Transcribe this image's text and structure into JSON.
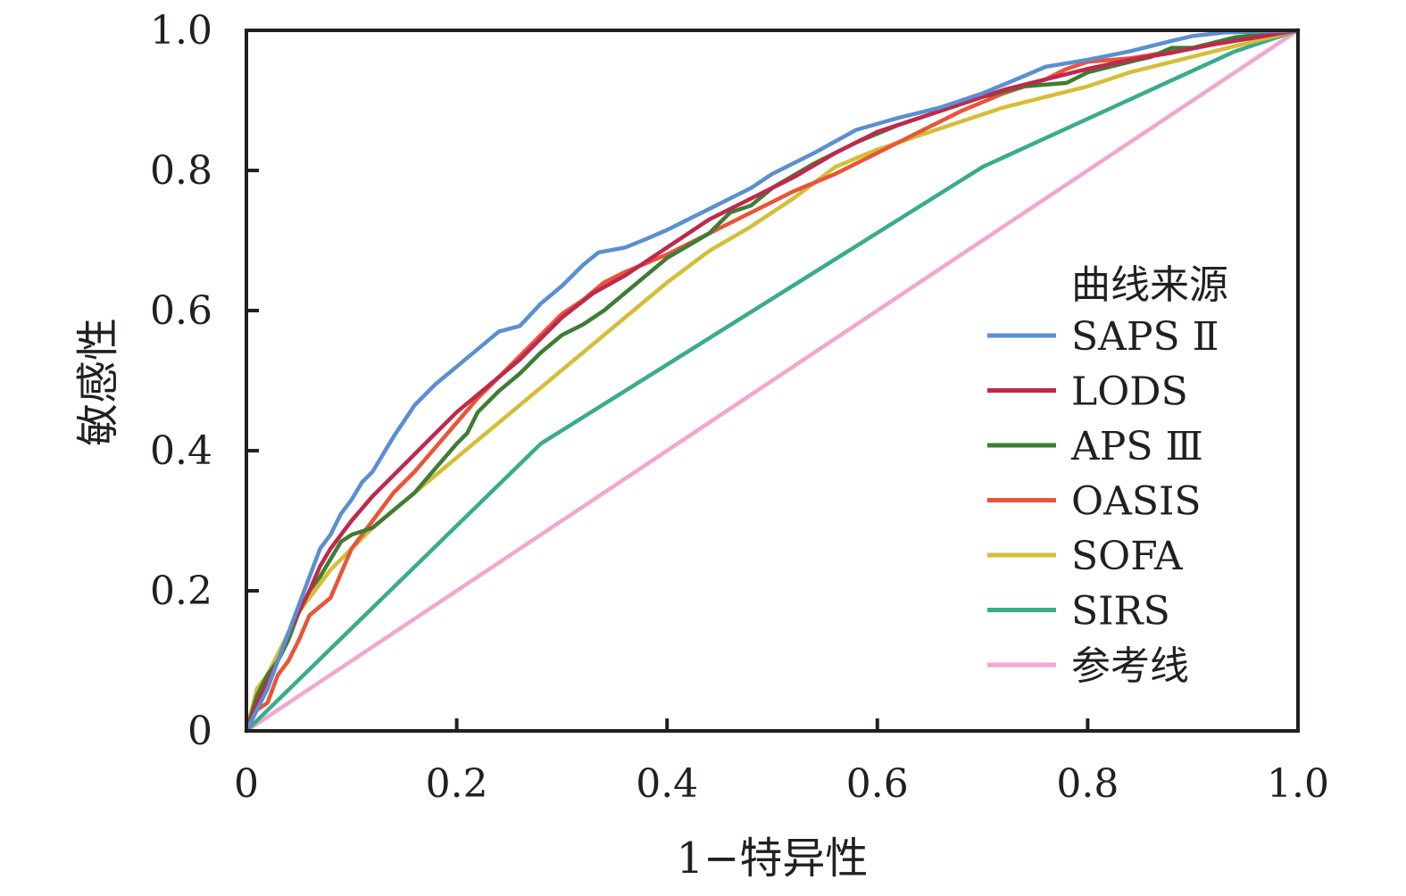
{
  "chart_data": {
    "type": "line",
    "xlabel": "1−特异性",
    "ylabel": "敏感性",
    "xlim": [
      0,
      1
    ],
    "ylim": [
      0,
      1
    ],
    "x_ticks": [
      0,
      0.2,
      0.4,
      0.6,
      0.8,
      1.0
    ],
    "y_ticks": [
      0,
      0.2,
      0.4,
      0.6,
      0.8,
      1.0
    ],
    "x_tick_labels": [
      "0",
      "0.2",
      "0.4",
      "0.6",
      "0.8",
      "1.0"
    ],
    "y_tick_labels": [
      "0",
      "0.2",
      "0.4",
      "0.6",
      "0.8",
      "1.0"
    ],
    "grid": false,
    "legend_title": "曲线来源",
    "legend_position": "right",
    "series": [
      {
        "name": "SAPS Ⅱ",
        "color": "#5b8fd1",
        "points": [
          [
            0,
            0
          ],
          [
            0.01,
            0.03
          ],
          [
            0.02,
            0.06
          ],
          [
            0.03,
            0.1
          ],
          [
            0.04,
            0.14
          ],
          [
            0.05,
            0.18
          ],
          [
            0.06,
            0.22
          ],
          [
            0.07,
            0.26
          ],
          [
            0.08,
            0.28
          ],
          [
            0.09,
            0.31
          ],
          [
            0.1,
            0.33
          ],
          [
            0.11,
            0.355
          ],
          [
            0.12,
            0.37
          ],
          [
            0.14,
            0.42
          ],
          [
            0.16,
            0.465
          ],
          [
            0.18,
            0.495
          ],
          [
            0.2,
            0.52
          ],
          [
            0.22,
            0.545
          ],
          [
            0.24,
            0.57
          ],
          [
            0.26,
            0.578
          ],
          [
            0.28,
            0.61
          ],
          [
            0.3,
            0.635
          ],
          [
            0.32,
            0.665
          ],
          [
            0.335,
            0.683
          ],
          [
            0.36,
            0.69
          ],
          [
            0.38,
            0.702
          ],
          [
            0.4,
            0.715
          ],
          [
            0.44,
            0.745
          ],
          [
            0.48,
            0.775
          ],
          [
            0.5,
            0.795
          ],
          [
            0.54,
            0.825
          ],
          [
            0.58,
            0.858
          ],
          [
            0.62,
            0.875
          ],
          [
            0.66,
            0.89
          ],
          [
            0.7,
            0.91
          ],
          [
            0.74,
            0.935
          ],
          [
            0.76,
            0.948
          ],
          [
            0.8,
            0.958
          ],
          [
            0.84,
            0.97
          ],
          [
            0.88,
            0.985
          ],
          [
            0.9,
            0.992
          ],
          [
            0.93,
            0.997
          ],
          [
            0.96,
            0.998
          ],
          [
            1,
            1
          ]
        ]
      },
      {
        "name": "LODS",
        "color": "#c0284d",
        "points": [
          [
            0,
            0
          ],
          [
            0.01,
            0.04
          ],
          [
            0.02,
            0.07
          ],
          [
            0.03,
            0.1
          ],
          [
            0.04,
            0.14
          ],
          [
            0.05,
            0.17
          ],
          [
            0.06,
            0.2
          ],
          [
            0.07,
            0.235
          ],
          [
            0.08,
            0.26
          ],
          [
            0.1,
            0.3
          ],
          [
            0.12,
            0.335
          ],
          [
            0.14,
            0.365
          ],
          [
            0.16,
            0.395
          ],
          [
            0.18,
            0.425
          ],
          [
            0.2,
            0.455
          ],
          [
            0.22,
            0.48
          ],
          [
            0.24,
            0.505
          ],
          [
            0.26,
            0.53
          ],
          [
            0.28,
            0.56
          ],
          [
            0.3,
            0.59
          ],
          [
            0.33,
            0.625
          ],
          [
            0.36,
            0.65
          ],
          [
            0.4,
            0.69
          ],
          [
            0.44,
            0.73
          ],
          [
            0.48,
            0.76
          ],
          [
            0.52,
            0.79
          ],
          [
            0.56,
            0.825
          ],
          [
            0.6,
            0.855
          ],
          [
            0.64,
            0.875
          ],
          [
            0.68,
            0.895
          ],
          [
            0.72,
            0.915
          ],
          [
            0.76,
            0.93
          ],
          [
            0.8,
            0.945
          ],
          [
            0.84,
            0.958
          ],
          [
            0.88,
            0.968
          ],
          [
            0.92,
            0.98
          ],
          [
            0.96,
            0.99
          ],
          [
            1,
            1
          ]
        ]
      },
      {
        "name": "APS Ⅲ",
        "color": "#3e7d34",
        "points": [
          [
            0,
            0
          ],
          [
            0.01,
            0.05
          ],
          [
            0.02,
            0.08
          ],
          [
            0.03,
            0.1
          ],
          [
            0.04,
            0.13
          ],
          [
            0.05,
            0.17
          ],
          [
            0.06,
            0.2
          ],
          [
            0.07,
            0.22
          ],
          [
            0.08,
            0.245
          ],
          [
            0.09,
            0.27
          ],
          [
            0.1,
            0.28
          ],
          [
            0.12,
            0.29
          ],
          [
            0.14,
            0.315
          ],
          [
            0.16,
            0.34
          ],
          [
            0.18,
            0.375
          ],
          [
            0.2,
            0.41
          ],
          [
            0.21,
            0.425
          ],
          [
            0.22,
            0.455
          ],
          [
            0.24,
            0.485
          ],
          [
            0.26,
            0.51
          ],
          [
            0.28,
            0.54
          ],
          [
            0.3,
            0.565
          ],
          [
            0.32,
            0.58
          ],
          [
            0.34,
            0.6
          ],
          [
            0.36,
            0.625
          ],
          [
            0.4,
            0.675
          ],
          [
            0.44,
            0.71
          ],
          [
            0.46,
            0.74
          ],
          [
            0.48,
            0.75
          ],
          [
            0.5,
            0.775
          ],
          [
            0.54,
            0.81
          ],
          [
            0.58,
            0.84
          ],
          [
            0.62,
            0.865
          ],
          [
            0.66,
            0.885
          ],
          [
            0.7,
            0.905
          ],
          [
            0.74,
            0.92
          ],
          [
            0.78,
            0.925
          ],
          [
            0.8,
            0.94
          ],
          [
            0.84,
            0.955
          ],
          [
            0.86,
            0.962
          ],
          [
            0.88,
            0.975
          ],
          [
            0.9,
            0.975
          ],
          [
            0.94,
            0.99
          ],
          [
            0.97,
            0.995
          ],
          [
            1,
            1
          ]
        ]
      },
      {
        "name": "OASIS",
        "color": "#e8553a",
        "points": [
          [
            0,
            0
          ],
          [
            0.01,
            0.03
          ],
          [
            0.02,
            0.04
          ],
          [
            0.03,
            0.08
          ],
          [
            0.04,
            0.1
          ],
          [
            0.05,
            0.13
          ],
          [
            0.06,
            0.165
          ],
          [
            0.08,
            0.19
          ],
          [
            0.09,
            0.225
          ],
          [
            0.1,
            0.26
          ],
          [
            0.12,
            0.3
          ],
          [
            0.14,
            0.34
          ],
          [
            0.16,
            0.37
          ],
          [
            0.18,
            0.405
          ],
          [
            0.2,
            0.44
          ],
          [
            0.22,
            0.475
          ],
          [
            0.24,
            0.505
          ],
          [
            0.26,
            0.535
          ],
          [
            0.28,
            0.565
          ],
          [
            0.3,
            0.595
          ],
          [
            0.32,
            0.615
          ],
          [
            0.34,
            0.64
          ],
          [
            0.36,
            0.655
          ],
          [
            0.4,
            0.68
          ],
          [
            0.44,
            0.71
          ],
          [
            0.48,
            0.74
          ],
          [
            0.52,
            0.77
          ],
          [
            0.56,
            0.795
          ],
          [
            0.6,
            0.825
          ],
          [
            0.64,
            0.855
          ],
          [
            0.68,
            0.885
          ],
          [
            0.72,
            0.91
          ],
          [
            0.76,
            0.93
          ],
          [
            0.78,
            0.945
          ],
          [
            0.8,
            0.955
          ],
          [
            0.84,
            0.96
          ],
          [
            0.88,
            0.97
          ],
          [
            0.92,
            0.98
          ],
          [
            0.96,
            0.99
          ],
          [
            1,
            1
          ]
        ]
      },
      {
        "name": "SOFA",
        "color": "#d4be39",
        "points": [
          [
            0,
            0
          ],
          [
            0.01,
            0.06
          ],
          [
            0.02,
            0.08
          ],
          [
            0.03,
            0.11
          ],
          [
            0.04,
            0.14
          ],
          [
            0.05,
            0.17
          ],
          [
            0.06,
            0.19
          ],
          [
            0.08,
            0.23
          ],
          [
            0.1,
            0.26
          ],
          [
            0.12,
            0.29
          ],
          [
            0.16,
            0.34
          ],
          [
            0.2,
            0.39
          ],
          [
            0.24,
            0.44
          ],
          [
            0.28,
            0.49
          ],
          [
            0.32,
            0.54
          ],
          [
            0.36,
            0.59
          ],
          [
            0.4,
            0.64
          ],
          [
            0.44,
            0.685
          ],
          [
            0.48,
            0.72
          ],
          [
            0.52,
            0.76
          ],
          [
            0.56,
            0.805
          ],
          [
            0.6,
            0.83
          ],
          [
            0.64,
            0.85
          ],
          [
            0.68,
            0.87
          ],
          [
            0.72,
            0.89
          ],
          [
            0.76,
            0.905
          ],
          [
            0.8,
            0.92
          ],
          [
            0.84,
            0.94
          ],
          [
            0.88,
            0.955
          ],
          [
            0.92,
            0.97
          ],
          [
            0.96,
            0.985
          ],
          [
            1,
            1
          ]
        ]
      },
      {
        "name": "SIRS",
        "color": "#3bab8d",
        "points": [
          [
            0,
            0
          ],
          [
            0.28,
            0.41
          ],
          [
            0.7,
            0.805
          ],
          [
            0.94,
            0.97
          ],
          [
            1,
            1
          ]
        ]
      },
      {
        "name": "参考线",
        "color": "#f3a6cf",
        "points": [
          [
            0,
            0
          ],
          [
            1,
            1
          ]
        ]
      }
    ]
  }
}
